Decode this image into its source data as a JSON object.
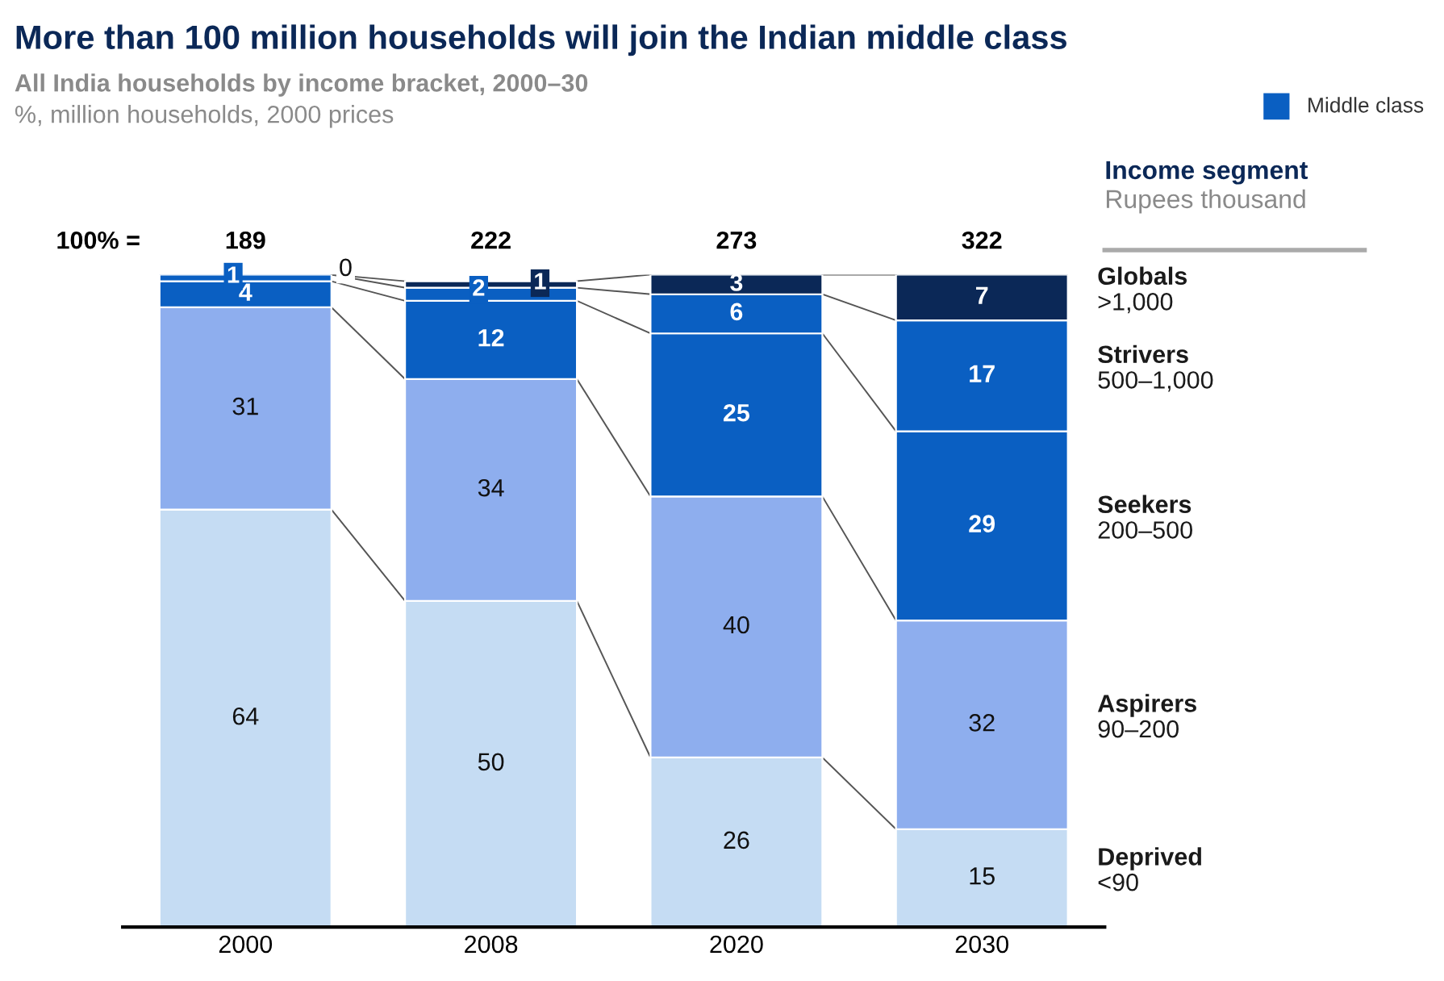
{
  "chart_data": {
    "type": "bar",
    "stacked": true,
    "title": "More than 100 million households will join the Indian middle class",
    "subtitle": "All India households by income bracket, 2000–30\n%, million households, 2000 prices",
    "categories": [
      "2000",
      "2008",
      "2020",
      "2030"
    ],
    "series": [
      {
        "name": "Deprived\n<90",
        "color": "#c5dcf3",
        "values": [
          64,
          50,
          26,
          15
        ],
        "value_labels": [
          "64",
          "50",
          "26",
          "15"
        ]
      },
      {
        "name": "Aspirers\n90–200",
        "color": "#8eaeee",
        "values": [
          31,
          34,
          40,
          32
        ],
        "value_labels": [
          "31",
          "34",
          "40",
          "32"
        ]
      },
      {
        "name": "Seekers\n200–500",
        "color": "#0a5fc2",
        "values": [
          4,
          12,
          25,
          29
        ],
        "value_labels": [
          "4",
          "12",
          "25",
          "29"
        ]
      },
      {
        "name": "Strivers\n500–1,000",
        "color": "#0a5fc2",
        "values": [
          1,
          2,
          6,
          17
        ],
        "value_labels": [
          "1",
          "2",
          "6",
          "17"
        ]
      },
      {
        "name": "Globals\n>1,000",
        "color": "#0b2857",
        "values": [
          0,
          1,
          3,
          7
        ],
        "value_labels": [
          null,
          "1",
          "3",
          "7"
        ]
      }
    ],
    "ylim": [
      0,
      100
    ],
    "tick_labels": "x",
    "grid": false,
    "legend_title": "Income segment",
    "annotations": [
      "0",
      "100% =",
      "189",
      "222",
      "273",
      "322",
      "Middle class",
      "Rupees thousand"
    ]
  }
}
